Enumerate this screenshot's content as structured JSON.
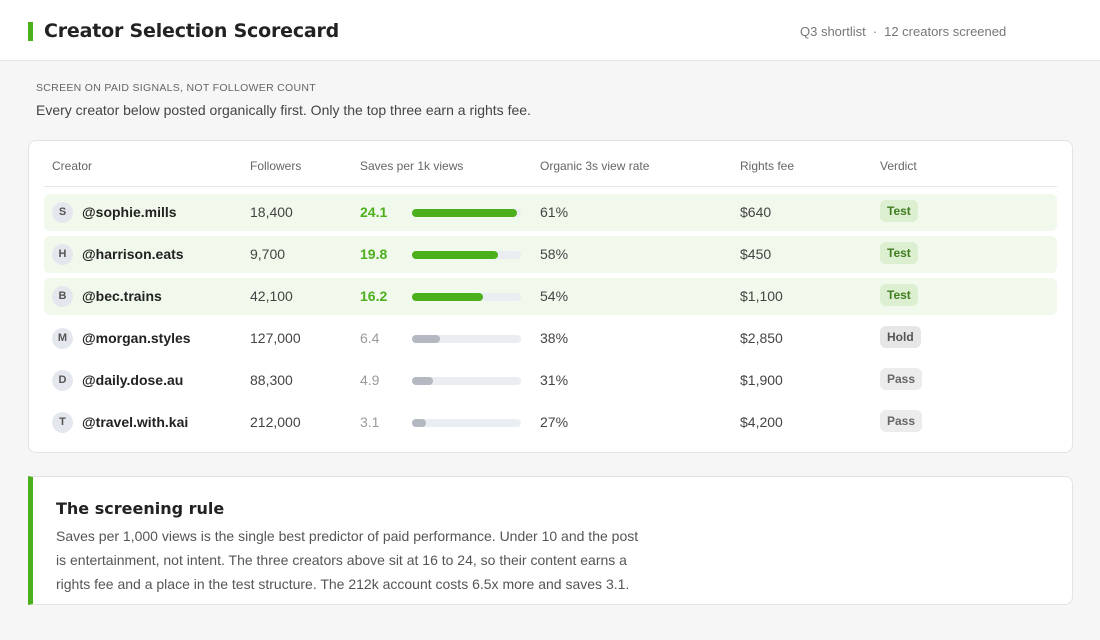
{
  "header": {
    "title": "Creator Selection Scorecard",
    "meta_left": "Q3 shortlist",
    "meta_separator": "·",
    "meta_right": "12 creators screened",
    "accent_color": "#4caf1c"
  },
  "intro": {
    "eyebrow": "SCREEN ON PAID SIGNALS, NOT FOLLOWER COUNT",
    "text": "Every creator below posted organically first. Only the top three earn a rights fee."
  },
  "table": {
    "columns": [
      "Creator",
      "Followers",
      "Saves per 1k views",
      "Organic 3s view rate",
      "Rights fee",
      "Verdict"
    ],
    "rows": [
      {
        "initial": "S",
        "handle": "@sophie.mills",
        "followers": "18,400",
        "saves": "24.1",
        "saves_value": 24.1,
        "view_rate": "61%",
        "fee": "$640",
        "verdict": "Test",
        "status": "test"
      },
      {
        "initial": "H",
        "handle": "@harrison.eats",
        "followers": "9,700",
        "saves": "19.8",
        "saves_value": 19.8,
        "view_rate": "58%",
        "fee": "$450",
        "verdict": "Test",
        "status": "test"
      },
      {
        "initial": "B",
        "handle": "@bec.trains",
        "followers": "42,100",
        "saves": "16.2",
        "saves_value": 16.2,
        "view_rate": "54%",
        "fee": "$1,100",
        "verdict": "Test",
        "status": "test"
      },
      {
        "initial": "M",
        "handle": "@morgan.styles",
        "followers": "127,000",
        "saves": "6.4",
        "saves_value": 6.4,
        "view_rate": "38%",
        "fee": "$2,850",
        "verdict": "Hold",
        "status": "hold"
      },
      {
        "initial": "D",
        "handle": "@daily.dose.au",
        "followers": "88,300",
        "saves": "4.9",
        "saves_value": 4.9,
        "view_rate": "31%",
        "fee": "$1,900",
        "verdict": "Pass",
        "status": "pass"
      },
      {
        "initial": "T",
        "handle": "@travel.with.kai",
        "followers": "212,000",
        "saves": "3.1",
        "saves_value": 3.1,
        "view_rate": "27%",
        "fee": "$4,200",
        "verdict": "Pass",
        "status": "pass"
      }
    ],
    "bar_max": 25
  },
  "rule": {
    "title": "The screening rule",
    "body": "Saves per 1,000 views is the single best predictor of paid performance. Under 10 and the post is entertainment, not intent. The three creators above sit at 16 to 24, so their content earns a rights fee and a place in the test structure. The 212k account costs 6.5x more and saves 3.1."
  }
}
